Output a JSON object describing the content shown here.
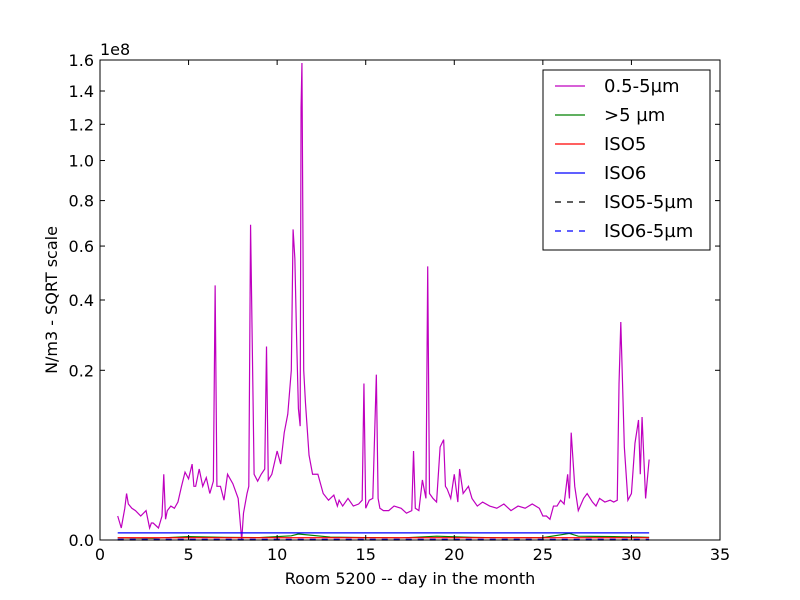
{
  "chart_data": {
    "type": "line",
    "title": "",
    "xlabel": "Room 5200 -- day in the month",
    "ylabel": "N/m3 - SQRT scale",
    "y_scale": "sqrt",
    "y_multiplier_label": "1e8",
    "xlim": [
      0,
      35
    ],
    "ylim": [
      0,
      1.6
    ],
    "grid": false,
    "legend_position": "top-right",
    "x_ticks": [
      0,
      5,
      10,
      15,
      20,
      25,
      30,
      35
    ],
    "x_tick_labels": [
      "0",
      "5",
      "10",
      "15",
      "20",
      "25",
      "30",
      "35"
    ],
    "y_ticks": [
      0.0,
      0.2,
      0.4,
      0.6,
      0.8,
      1.0,
      1.2,
      1.4,
      1.6
    ],
    "y_tick_labels": [
      "0.0",
      "0.2",
      "0.4",
      "0.6",
      "0.8",
      "1.0",
      "1.2",
      "1.4",
      "1.6"
    ],
    "series": [
      {
        "name": "0.5-5µm",
        "color": "#bf00bf",
        "dash": "solid",
        "x": [
          1.0,
          1.2,
          1.4,
          1.5,
          1.6,
          1.8,
          2.0,
          2.3,
          2.6,
          2.8,
          2.9,
          3.0,
          3.3,
          3.5,
          3.6,
          3.7,
          3.8,
          4.0,
          4.2,
          4.4,
          4.6,
          4.8,
          5.0,
          5.2,
          5.3,
          5.4,
          5.6,
          5.8,
          6.0,
          6.2,
          6.4,
          6.5,
          6.6,
          6.8,
          7.0,
          7.2,
          7.5,
          7.8,
          8.0,
          8.1,
          8.3,
          8.4,
          8.5,
          8.7,
          8.9,
          9.1,
          9.3,
          9.4,
          9.5,
          9.7,
          10.0,
          10.2,
          10.4,
          10.6,
          10.8,
          10.9,
          11.0,
          11.1,
          11.2,
          11.3,
          11.35,
          11.4,
          11.5,
          11.6,
          11.8,
          12.0,
          12.3,
          12.6,
          12.9,
          13.2,
          13.4,
          13.5,
          13.7,
          14.0,
          14.3,
          14.6,
          14.8,
          14.9,
          15.0,
          15.2,
          15.4,
          15.6,
          15.7,
          15.8,
          16.0,
          16.3,
          16.6,
          17.0,
          17.3,
          17.6,
          17.7,
          17.8,
          18.0,
          18.2,
          18.4,
          18.5,
          18.6,
          18.8,
          19.0,
          19.2,
          19.4,
          19.5,
          19.6,
          19.8,
          20.0,
          20.2,
          20.3,
          20.5,
          20.8,
          21.0,
          21.3,
          21.6,
          22.0,
          22.4,
          22.8,
          23.2,
          23.6,
          24.0,
          24.4,
          24.8,
          25.0,
          25.2,
          25.4,
          25.6,
          25.8,
          26.0,
          26.2,
          26.4,
          26.5,
          26.6,
          26.8,
          27.0,
          27.3,
          27.5,
          27.8,
          28.0,
          28.2,
          28.5,
          28.8,
          29.0,
          29.2,
          29.3,
          29.4,
          29.6,
          29.8,
          30.0,
          30.2,
          30.4,
          30.5,
          30.6,
          30.8,
          31.0
        ],
        "y": [
          0.004,
          0.001,
          0.007,
          0.015,
          0.009,
          0.007,
          0.006,
          0.004,
          0.006,
          0.001,
          0.002,
          0.002,
          0.001,
          0.004,
          0.03,
          0.003,
          0.006,
          0.008,
          0.007,
          0.01,
          0.02,
          0.032,
          0.026,
          0.04,
          0.02,
          0.02,
          0.035,
          0.02,
          0.027,
          0.015,
          0.024,
          0.45,
          0.02,
          0.02,
          0.011,
          0.03,
          0.022,
          0.012,
          0.0,
          0.005,
          0.015,
          0.02,
          0.69,
          0.03,
          0.024,
          0.03,
          0.035,
          0.26,
          0.025,
          0.03,
          0.055,
          0.04,
          0.08,
          0.11,
          0.2,
          0.67,
          0.55,
          0.28,
          0.12,
          0.09,
          1.3,
          1.58,
          0.2,
          0.13,
          0.05,
          0.03,
          0.03,
          0.015,
          0.011,
          0.014,
          0.008,
          0.011,
          0.008,
          0.012,
          0.008,
          0.009,
          0.011,
          0.17,
          0.007,
          0.011,
          0.012,
          0.19,
          0.012,
          0.007,
          0.006,
          0.006,
          0.008,
          0.007,
          0.005,
          0.006,
          0.055,
          0.007,
          0.006,
          0.025,
          0.012,
          0.52,
          0.015,
          0.012,
          0.01,
          0.06,
          0.07,
          0.02,
          0.018,
          0.012,
          0.03,
          0.01,
          0.035,
          0.015,
          0.02,
          0.012,
          0.008,
          0.01,
          0.008,
          0.007,
          0.009,
          0.006,
          0.008,
          0.007,
          0.009,
          0.007,
          0.004,
          0.004,
          0.003,
          0.008,
          0.008,
          0.011,
          0.009,
          0.03,
          0.012,
          0.08,
          0.02,
          0.006,
          0.012,
          0.015,
          0.01,
          0.008,
          0.012,
          0.01,
          0.011,
          0.01,
          0.011,
          0.17,
          0.33,
          0.06,
          0.011,
          0.015,
          0.065,
          0.1,
          0.03,
          0.105,
          0.012,
          0.045
        ]
      },
      {
        "name": ">5 µm",
        "color": "#008000",
        "dash": "solid",
        "x": [
          1.0,
          3.0,
          5.0,
          7.0,
          9.0,
          10.8,
          11.2,
          13.0,
          15.0,
          17.0,
          19.0,
          21.0,
          23.0,
          25.0,
          26.5,
          27.0,
          29.0,
          31.0
        ],
        "y": [
          3e-05,
          2e-05,
          8e-05,
          5e-05,
          4e-05,
          0.00012,
          0.00025,
          6e-05,
          4e-05,
          3e-05,
          0.0001,
          5e-05,
          3e-05,
          4e-05,
          0.0003,
          0.0001,
          8e-05,
          5e-05
        ]
      },
      {
        "name": "ISO5",
        "color": "#ff0000",
        "dash": "solid",
        "x": [
          1.0,
          31.0
        ],
        "y": [
          3.52e-05,
          3.52e-05
        ]
      },
      {
        "name": "ISO6",
        "color": "#0000ff",
        "dash": "solid",
        "x": [
          1.0,
          31.0
        ],
        "y": [
          0.000352,
          0.000352
        ]
      },
      {
        "name": "ISO5-5µm",
        "color": "#000000",
        "dash": "dashed",
        "x": [
          1.0,
          31.0
        ],
        "y": [
          0.0,
          0.0
        ]
      },
      {
        "name": "ISO6-5µm",
        "color": "#0000ff",
        "dash": "dashed",
        "x": [
          1.0,
          31.0
        ],
        "y": [
          2.9e-06,
          2.9e-06
        ]
      }
    ]
  }
}
